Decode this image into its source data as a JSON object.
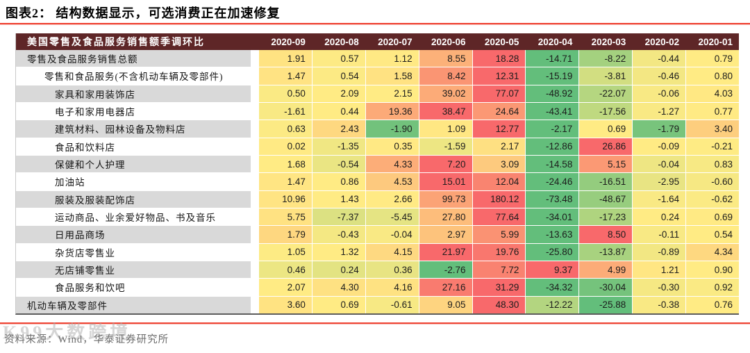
{
  "title": "图表2：  结构数据显示，可选消费正在加速修复",
  "chart_data": {
    "type": "heatmap",
    "title": "图表2： 结构数据显示，可选消费正在加速修复",
    "header_label": "美国零售及食品服务销售额季调环比",
    "columns": [
      "2020-09",
      "2020-08",
      "2020-07",
      "2020-06",
      "2020-05",
      "2020-04",
      "2020-03",
      "2020-02",
      "2020-01"
    ],
    "rows": [
      {
        "label": "零售及食品服务销售总额",
        "indent": 0,
        "values": [
          1.91,
          0.57,
          1.12,
          8.55,
          18.28,
          -14.71,
          -8.22,
          -0.44,
          0.79
        ]
      },
      {
        "label": "零售和食品服务(不含机动车辆及零部件)",
        "indent": 1,
        "values": [
          1.47,
          0.54,
          1.58,
          8.42,
          12.31,
          -15.19,
          -3.81,
          -0.46,
          0.8
        ]
      },
      {
        "label": "家具和家用装饰店",
        "indent": 2,
        "values": [
          0.5,
          2.09,
          2.15,
          39.02,
          77.07,
          -48.92,
          -22.07,
          -0.06,
          4.03
        ]
      },
      {
        "label": "电子和家用电器店",
        "indent": 2,
        "values": [
          -1.61,
          0.44,
          19.36,
          38.47,
          24.64,
          -43.41,
          -17.56,
          -1.27,
          0.77
        ]
      },
      {
        "label": "建筑材料、园林设备及物料店",
        "indent": 2,
        "values": [
          0.63,
          2.43,
          -1.9,
          1.09,
          12.77,
          -2.17,
          0.69,
          -1.79,
          3.4
        ]
      },
      {
        "label": "食品和饮料店",
        "indent": 2,
        "values": [
          0.02,
          -1.35,
          0.35,
          -1.59,
          2.17,
          -12.86,
          26.86,
          -0.09,
          -0.21
        ]
      },
      {
        "label": "保健和个人护理",
        "indent": 2,
        "values": [
          1.68,
          -0.54,
          4.33,
          7.2,
          3.09,
          -14.58,
          5.15,
          -0.04,
          0.83
        ]
      },
      {
        "label": "加油站",
        "indent": 2,
        "values": [
          1.47,
          0.86,
          4.53,
          15.01,
          12.04,
          -24.46,
          -16.51,
          -2.95,
          -0.6
        ]
      },
      {
        "label": "服装及服装配饰店",
        "indent": 2,
        "values": [
          10.96,
          1.43,
          2.66,
          99.73,
          180.12,
          -73.48,
          -48.67,
          -1.64,
          -0.62
        ]
      },
      {
        "label": "运动商品、业余爱好物品、书及音乐",
        "indent": 2,
        "values": [
          5.75,
          -7.37,
          -5.45,
          27.8,
          77.64,
          -34.01,
          -17.23,
          0.24,
          0.69
        ]
      },
      {
        "label": "日用品商场",
        "indent": 2,
        "values": [
          1.79,
          -0.43,
          -0.04,
          2.97,
          5.99,
          -13.63,
          8.5,
          -0.11,
          0.54
        ]
      },
      {
        "label": "杂货店零售业",
        "indent": 2,
        "values": [
          1.05,
          1.32,
          4.15,
          21.97,
          19.76,
          -25.8,
          -13.87,
          -0.89,
          4.34
        ]
      },
      {
        "label": "无店铺零售业",
        "indent": 2,
        "values": [
          0.46,
          0.24,
          0.36,
          -2.76,
          7.72,
          9.37,
          4.99,
          1.21,
          0.9
        ]
      },
      {
        "label": "食品服务和饮吧",
        "indent": 2,
        "values": [
          2.07,
          4.3,
          4.16,
          27.16,
          31.29,
          -34.32,
          -30.04,
          -0.3,
          0.92
        ]
      },
      {
        "label": "机动车辆及零部件",
        "indent": 0,
        "values": [
          3.6,
          0.69,
          -0.61,
          9.05,
          48.3,
          -12.22,
          -25.88,
          -0.38,
          0.76
        ]
      }
    ],
    "color_scale": {
      "mode": "per-row 3-color scale, midpoint = row median",
      "min_color": "#63BE7B",
      "mid_color": "#FFEB84",
      "max_color": "#F8696B"
    },
    "legend_position": "none",
    "grid": false
  },
  "footer": {
    "source": "资料来源：Wind，华泰证券研究所"
  },
  "watermark": {
    "text": "K99大数跨境"
  },
  "colors": {
    "header_bg": "#5E2627",
    "row_alt_bg": "#D9D9D9",
    "accent_red": "#EF4434",
    "table_bottom_border": "#5C5C5C",
    "footer_text": "#6B6B6B"
  }
}
